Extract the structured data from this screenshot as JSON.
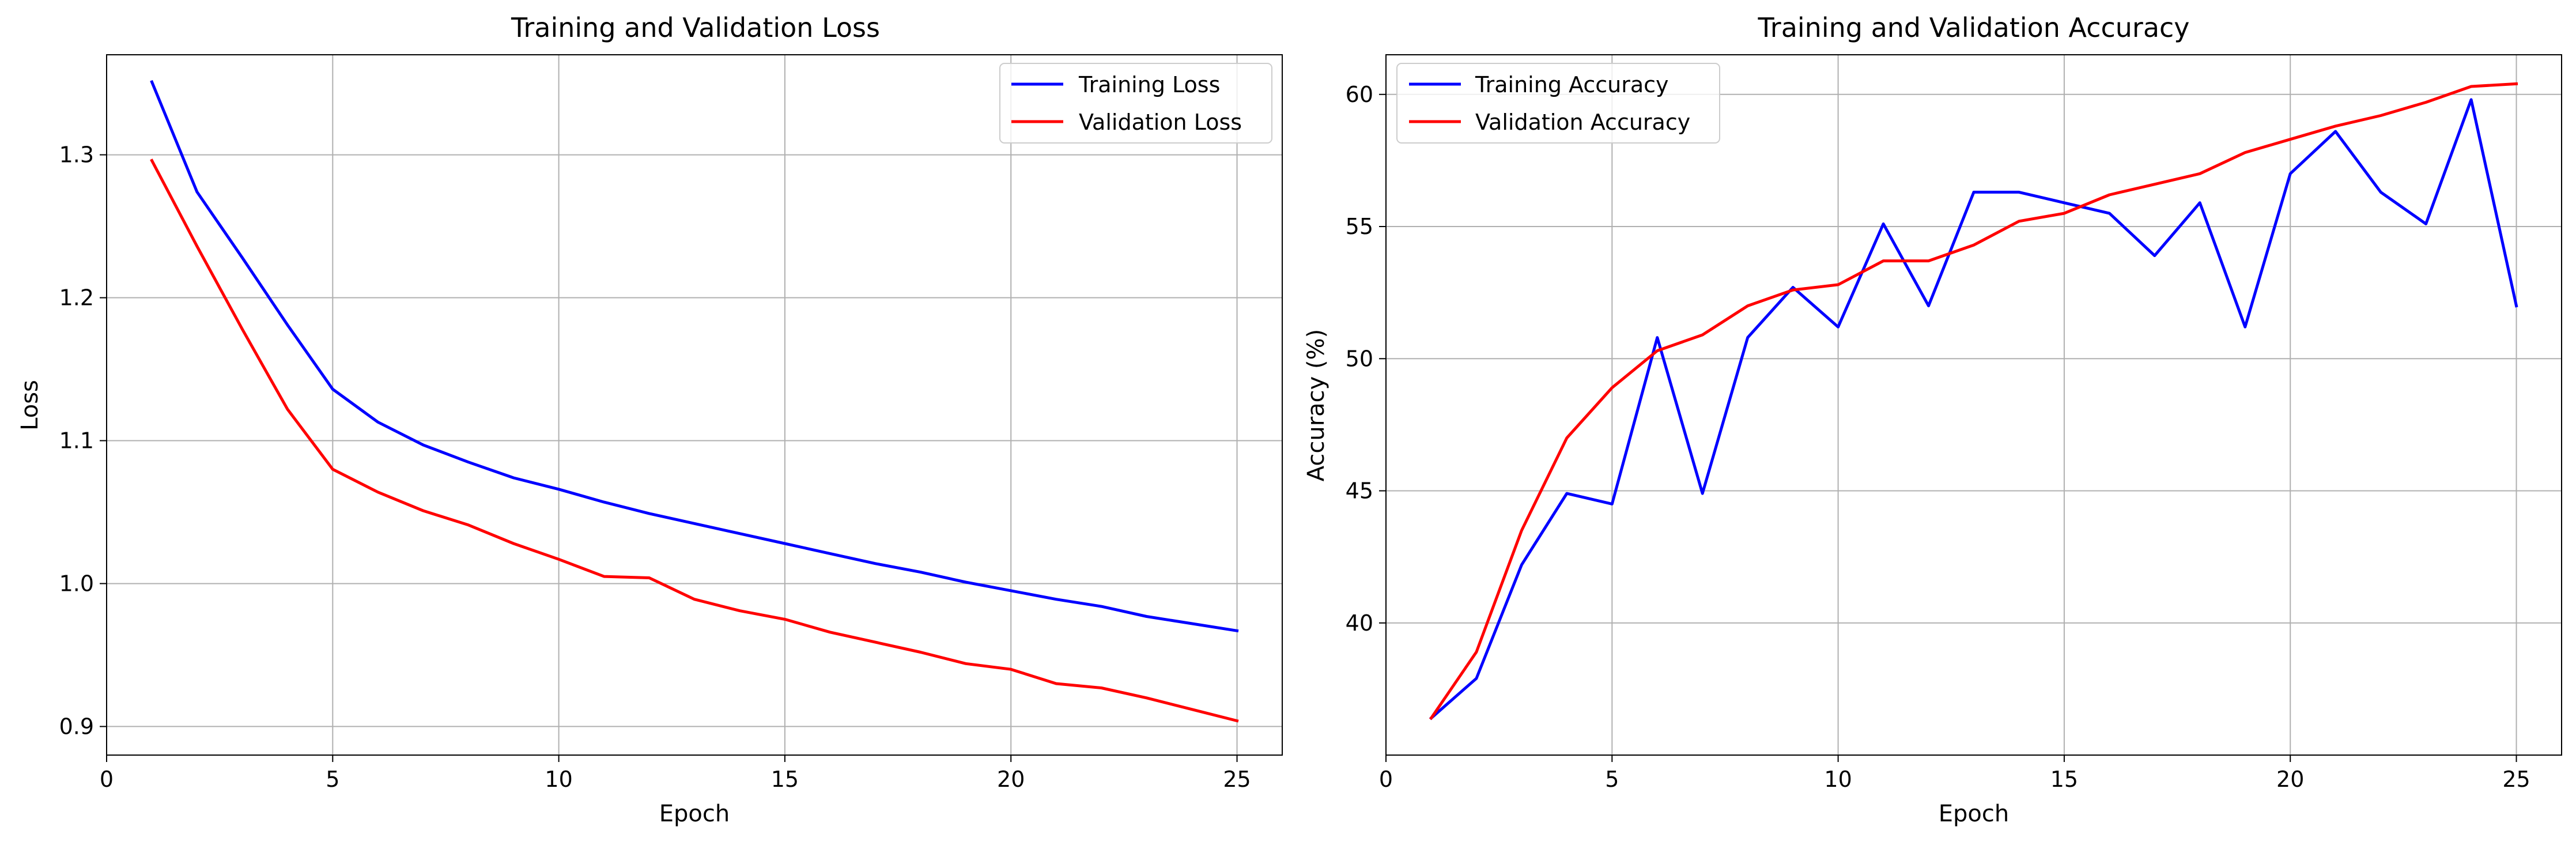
{
  "figure": {
    "background": "#ffffff"
  },
  "chart_data": [
    {
      "type": "line",
      "title": "Training and Validation Loss",
      "xlabel": "Epoch",
      "ylabel": "Loss",
      "xlim": [
        0,
        26
      ],
      "ylim": [
        0.88,
        1.37
      ],
      "xticks": [
        0,
        5,
        10,
        15,
        20,
        25
      ],
      "yticks": [
        0.9,
        1.0,
        1.1,
        1.2,
        1.3
      ],
      "ytick_labels": [
        "0.9",
        "1.0",
        "1.1",
        "1.2",
        "1.3"
      ],
      "grid": true,
      "legend_position": "upper right",
      "x": [
        1,
        2,
        3,
        4,
        5,
        6,
        7,
        8,
        9,
        10,
        11,
        12,
        13,
        14,
        15,
        16,
        17,
        18,
        19,
        20,
        21,
        22,
        23,
        24,
        25
      ],
      "series": [
        {
          "name": "Training Loss",
          "color": "#0000ff",
          "values": [
            1.351,
            1.274,
            1.228,
            1.181,
            1.136,
            1.113,
            1.097,
            1.085,
            1.074,
            1.066,
            1.057,
            1.049,
            1.042,
            1.035,
            1.028,
            1.021,
            1.014,
            1.008,
            1.001,
            0.995,
            0.989,
            0.984,
            0.977,
            0.972,
            0.967
          ]
        },
        {
          "name": "Validation Loss",
          "color": "#ff0000",
          "values": [
            1.296,
            1.236,
            1.178,
            1.122,
            1.08,
            1.064,
            1.051,
            1.041,
            1.028,
            1.017,
            1.005,
            1.004,
            0.989,
            0.981,
            0.975,
            0.966,
            0.959,
            0.952,
            0.944,
            0.94,
            0.93,
            0.927,
            0.92,
            0.912,
            0.904
          ]
        }
      ]
    },
    {
      "type": "line",
      "title": "Training and Validation Accuracy",
      "xlabel": "Epoch",
      "ylabel": "Accuracy (%)",
      "xlim": [
        0,
        26
      ],
      "ylim": [
        35.0,
        61.5
      ],
      "xticks": [
        0,
        5,
        10,
        15,
        20,
        25
      ],
      "yticks": [
        40,
        45,
        50,
        55,
        60
      ],
      "ytick_labels": [
        "40",
        "45",
        "50",
        "55",
        "60"
      ],
      "grid": true,
      "legend_position": "upper left",
      "x": [
        1,
        2,
        3,
        4,
        5,
        6,
        7,
        8,
        9,
        10,
        11,
        12,
        13,
        14,
        15,
        16,
        17,
        18,
        19,
        20,
        21,
        22,
        23,
        24,
        25
      ],
      "series": [
        {
          "name": "Training Accuracy",
          "color": "#0000ff",
          "values": [
            36.4,
            37.9,
            42.2,
            44.9,
            44.5,
            50.8,
            44.9,
            50.8,
            52.7,
            51.2,
            55.1,
            52.0,
            56.3,
            56.3,
            55.9,
            55.5,
            53.9,
            55.9,
            51.2,
            57.0,
            58.6,
            56.3,
            55.1,
            59.8,
            52.0
          ]
        },
        {
          "name": "Validation Accuracy",
          "color": "#ff0000",
          "values": [
            36.4,
            38.9,
            43.5,
            47.0,
            48.9,
            50.3,
            50.9,
            52.0,
            52.6,
            52.8,
            53.7,
            53.7,
            54.3,
            55.2,
            55.5,
            56.2,
            56.6,
            57.0,
            57.8,
            58.3,
            58.8,
            59.2,
            59.7,
            60.3,
            60.4
          ]
        }
      ]
    }
  ]
}
